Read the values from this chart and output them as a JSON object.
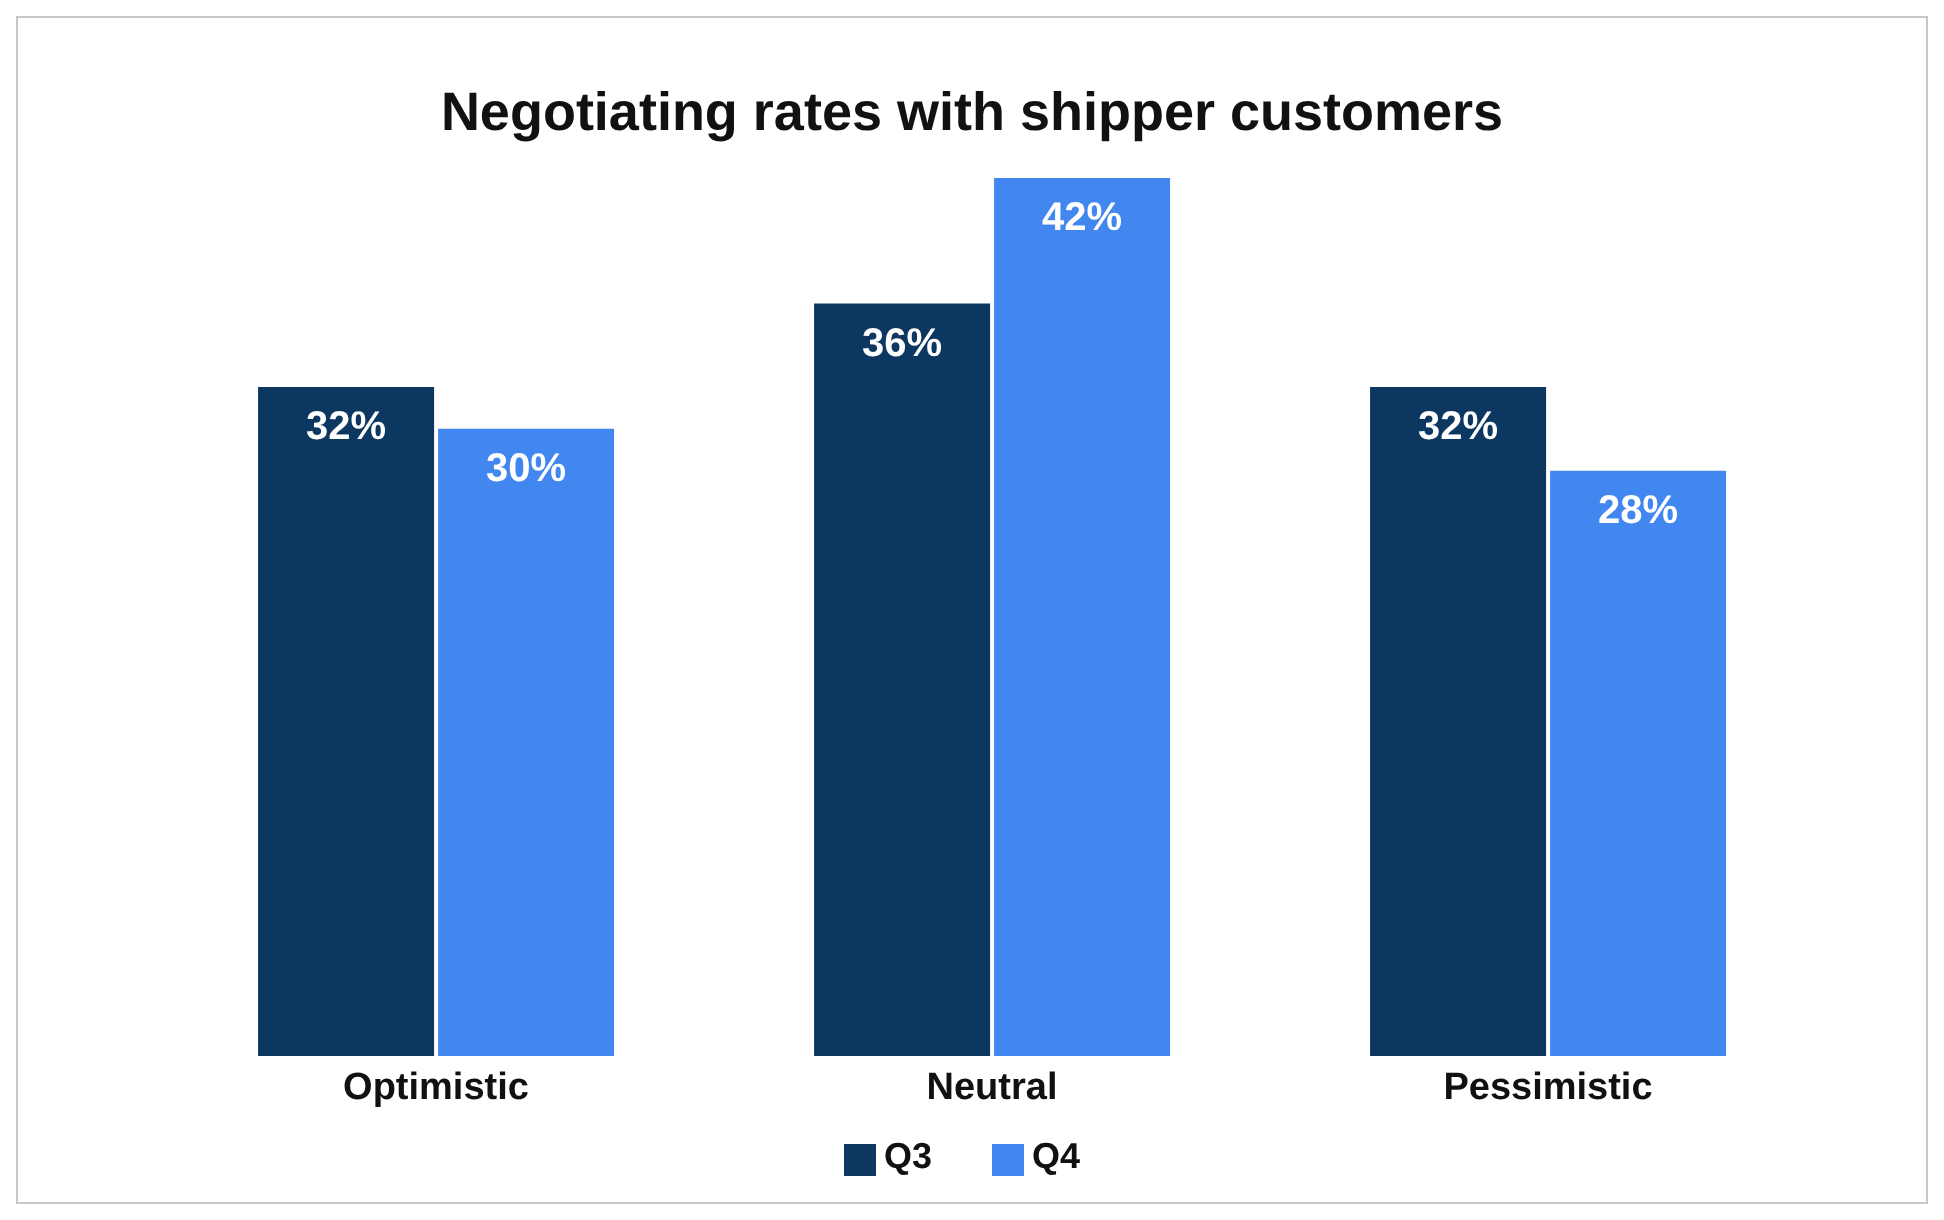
{
  "chart_data": {
    "type": "bar",
    "title": "Negotiating rates with shipper customers",
    "categories": [
      "Optimistic",
      "Neutral",
      "Pessimistic"
    ],
    "series": [
      {
        "name": "Q3",
        "color": "#0c3761",
        "values": [
          32,
          36,
          32
        ],
        "value_labels": [
          "32%",
          "36%",
          "32%"
        ]
      },
      {
        "name": "Q4",
        "color": "#4287f0",
        "values": [
          30,
          42,
          28
        ],
        "value_labels": [
          "30%",
          "42%",
          "28%"
        ]
      }
    ],
    "legend": "bottom",
    "grid": false,
    "tick_labels": "x"
  }
}
